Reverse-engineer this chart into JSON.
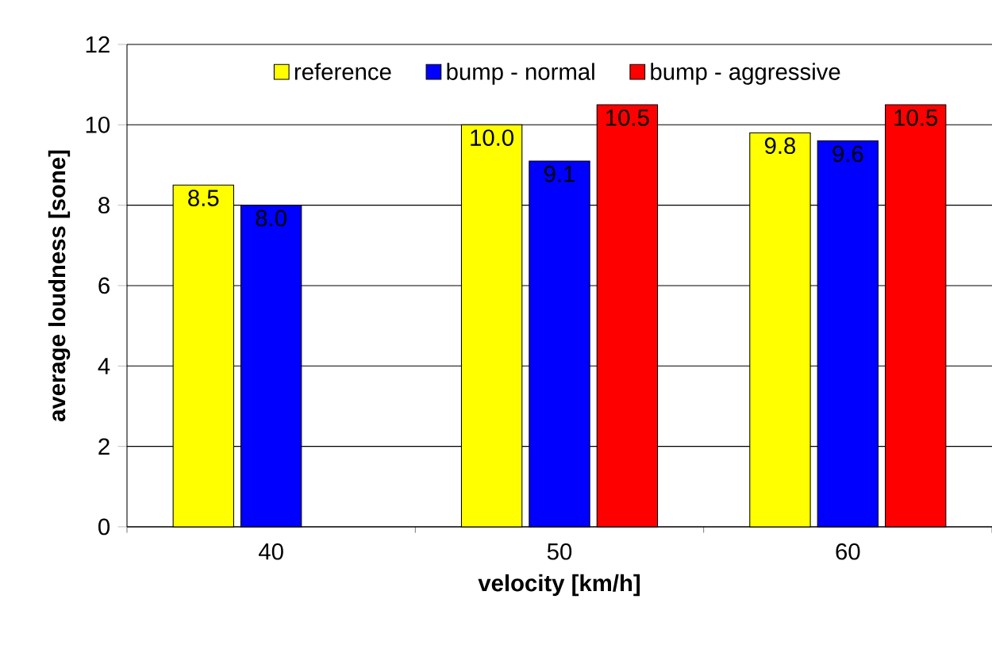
{
  "chart_data": {
    "type": "bar",
    "xlabel": "velocity [km/h]",
    "ylabel": "average loudness [sone]",
    "categories": [
      "40",
      "50",
      "60"
    ],
    "series": [
      {
        "name": "reference",
        "color": "#ffff00",
        "values": [
          8.5,
          10.0,
          9.8
        ],
        "value_labels": [
          "8.5",
          "10.0",
          "9.8"
        ]
      },
      {
        "name": "bump - normal",
        "color": "#0000ff",
        "values": [
          8.0,
          9.1,
          9.6
        ],
        "value_labels": [
          "8.0",
          "9.1",
          "9.6"
        ]
      },
      {
        "name": "bump - aggressive",
        "color": "#ff0000",
        "values": [
          null,
          10.5,
          10.5
        ],
        "value_labels": [
          null,
          "10.5",
          "10.5"
        ]
      }
    ],
    "ylim": [
      0,
      12
    ],
    "yticks": [
      0,
      2,
      4,
      6,
      8,
      10,
      12
    ],
    "grid": "y",
    "legend": "top"
  }
}
